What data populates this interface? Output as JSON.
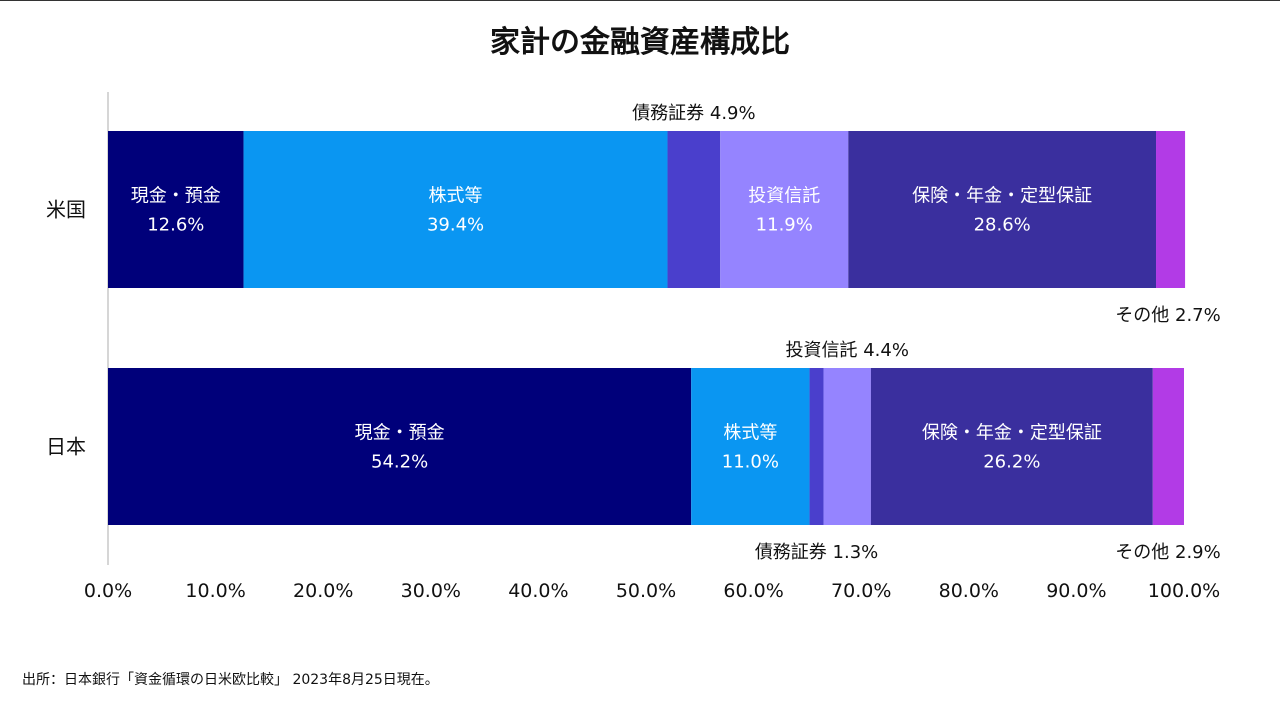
{
  "chart_data": {
    "type": "bar",
    "orientation": "horizontal",
    "stacked": true,
    "title": "家計の金融資産構成比",
    "categories": [
      "米国",
      "日本"
    ],
    "series": [
      {
        "name": "現金・預金",
        "color": "#00007a",
        "values": [
          12.6,
          54.2
        ]
      },
      {
        "name": "株式等",
        "color": "#0a96f2",
        "values": [
          39.4,
          11.0
        ]
      },
      {
        "name": "債務証券",
        "color": "#4a3fcc",
        "values": [
          4.9,
          1.3
        ]
      },
      {
        "name": "投資信託",
        "color": "#9584ff",
        "values": [
          11.9,
          4.4
        ]
      },
      {
        "name": "保険・年金・定型保証",
        "color": "#3a2f9e",
        "values": [
          28.6,
          26.2
        ]
      },
      {
        "name": "その他",
        "color": "#b23be6",
        "values": [
          2.7,
          2.9
        ]
      }
    ],
    "x_ticks": [
      "0.0%",
      "10.0%",
      "20.0%",
      "30.0%",
      "40.0%",
      "50.0%",
      "60.0%",
      "70.0%",
      "80.0%",
      "90.0%",
      "100.0%"
    ],
    "xlim": [
      0,
      100
    ],
    "grid": false,
    "legend": "none",
    "labels": [
      {
        "cat": 0,
        "series": 0,
        "lines": [
          "現金・預金",
          "12.6%"
        ],
        "place": "inside"
      },
      {
        "cat": 0,
        "series": 1,
        "lines": [
          "株式等",
          "39.4%"
        ],
        "place": "inside"
      },
      {
        "cat": 0,
        "series": 2,
        "lines": [
          "債務証券 4.9%"
        ],
        "place": "above"
      },
      {
        "cat": 0,
        "series": 3,
        "lines": [
          "投資信託",
          "11.9%"
        ],
        "place": "inside"
      },
      {
        "cat": 0,
        "series": 4,
        "lines": [
          "保険・年金・定型保証",
          "28.6%"
        ],
        "place": "inside"
      },
      {
        "cat": 0,
        "series": 5,
        "lines": [
          "その他 2.7%"
        ],
        "place": "below"
      },
      {
        "cat": 1,
        "series": 0,
        "lines": [
          "現金・預金",
          "54.2%"
        ],
        "place": "inside"
      },
      {
        "cat": 1,
        "series": 1,
        "lines": [
          "株式等",
          "11.0%"
        ],
        "place": "inside"
      },
      {
        "cat": 1,
        "series": 2,
        "lines": [
          "債務証券 1.3%"
        ],
        "place": "below"
      },
      {
        "cat": 1,
        "series": 3,
        "lines": [
          "投資信託 4.4%"
        ],
        "place": "above"
      },
      {
        "cat": 1,
        "series": 4,
        "lines": [
          "保険・年金・定型保証",
          "26.2%"
        ],
        "place": "inside"
      },
      {
        "cat": 1,
        "series": 5,
        "lines": [
          "その他 2.9%"
        ],
        "place": "below"
      }
    ]
  },
  "source": "出所：日本銀行「資金循環の日米欧比較」 2023年8月25日現在。"
}
